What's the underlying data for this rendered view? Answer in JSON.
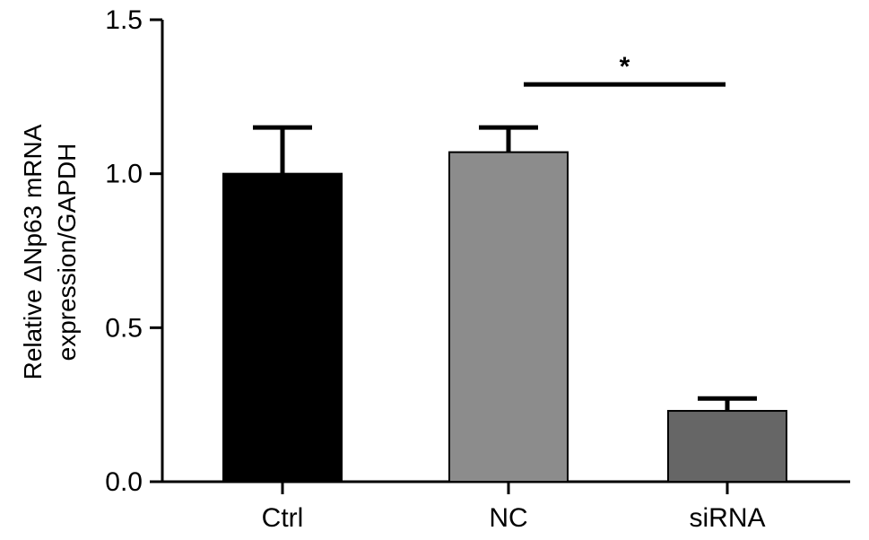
{
  "chart_data": {
    "type": "bar",
    "title": "",
    "ylabel_lines": [
      "Relative ΔNp63 mRNA",
      "expression/GAPDH"
    ],
    "xlabel": "",
    "categories": [
      "Ctrl",
      "NC",
      "siRNA"
    ],
    "values": [
      1.0,
      1.07,
      0.23
    ],
    "errors": [
      0.15,
      0.08,
      0.04
    ],
    "colors": [
      "#000000",
      "#8c8c8c",
      "#666666"
    ],
    "ylim": [
      0,
      1.5
    ],
    "yticks": [
      0.0,
      0.5,
      1.0,
      1.5
    ],
    "ytick_labels": [
      "0.0",
      "0.5",
      "1.0",
      "1.5"
    ],
    "grid": false,
    "legend": "none",
    "significance": [
      {
        "from": "NC",
        "to": "siRNA",
        "y": 1.29,
        "label": "*"
      }
    ]
  }
}
